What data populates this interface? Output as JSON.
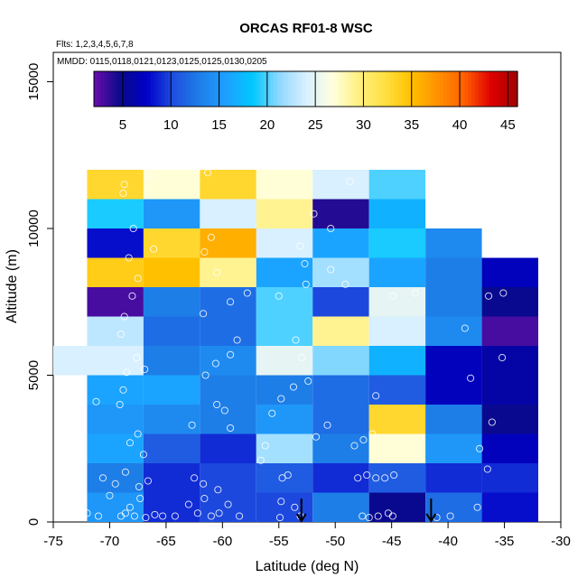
{
  "chart_data": {
    "type": "heatmap",
    "title": "ORCAS RF01-8 WSC",
    "annotations": {
      "flights": "Flts: 1,2,3,4,5,6,7,8",
      "dates": "MMDD: 0115,0118,0121,0123,0125,0125,0130,0205"
    },
    "xlabel": "Latitude (deg N)",
    "ylabel": "Altitude (m)",
    "xlim": [
      -75,
      -30
    ],
    "ylim": [
      0,
      16000
    ],
    "x_ticks": [
      -75,
      -70,
      -65,
      -60,
      -55,
      -50,
      -45,
      -40,
      -35,
      -30
    ],
    "y_ticks": [
      0,
      5000,
      10000,
      15000
    ],
    "x_tick_labels": [
      "-75",
      "-70",
      "-65",
      "-60",
      "-55",
      "-50",
      "-45",
      "-40",
      "-35",
      "-30"
    ],
    "y_tick_labels": [
      "0",
      "5000",
      "10000",
      "15000"
    ],
    "colorbar": {
      "range": [
        2,
        46
      ],
      "ticks": [
        5,
        10,
        15,
        20,
        25,
        30,
        35,
        40,
        45
      ],
      "tick_labels": [
        "5",
        "10",
        "15",
        "20",
        "25",
        "30",
        "35",
        "40",
        "45"
      ]
    },
    "bin_width_deg": 5,
    "bin_height_m": 1000,
    "columns": [
      {
        "lon_min": -75,
        "values": [
          null,
          null,
          null,
          null,
          null,
          24,
          null,
          null,
          null,
          null,
          null,
          null
        ]
      },
      {
        "lon_min": -72,
        "values": [
          15,
          13,
          16,
          15,
          16,
          24,
          23,
          3,
          34,
          8,
          19,
          33
        ]
      },
      {
        "lon_min": -67,
        "values": [
          9,
          9,
          11,
          14,
          16,
          13,
          12,
          13,
          35,
          33,
          15,
          27
        ]
      },
      {
        "lon_min": -62,
        "values": [
          10,
          10,
          9,
          13,
          13,
          14,
          12,
          12,
          29,
          36,
          24,
          33
        ]
      },
      {
        "lon_min": -57,
        "values": [
          10,
          11,
          22,
          15,
          13,
          25,
          20,
          20,
          16,
          24,
          29,
          27
        ]
      },
      {
        "lon_min": -52,
        "values": [
          13,
          9,
          13,
          12,
          12,
          21,
          29,
          10,
          22,
          16,
          4,
          24
        ]
      },
      {
        "lon_min": -47,
        "values": [
          5,
          11,
          27,
          33,
          11,
          17,
          24,
          25,
          16,
          19,
          17,
          20
        ]
      },
      {
        "lon_min": -42,
        "values": [
          12,
          9,
          15,
          13,
          7,
          7,
          14,
          13,
          13,
          14,
          null,
          null
        ]
      },
      {
        "lon_min": -37,
        "values": [
          8,
          9,
          7,
          5,
          6,
          6,
          3,
          5,
          7,
          null,
          null,
          null
        ]
      }
    ],
    "markers": [
      {
        "label": "down-arrow",
        "lat": -53,
        "alt": 800
      },
      {
        "label": "down-arrow",
        "lat": -41.5,
        "alt": 800
      }
    ],
    "point_cloud": [
      [
        -72.0,
        300
      ],
      [
        -71.0,
        200
      ],
      [
        -70.6,
        1500
      ],
      [
        -70.0,
        900
      ],
      [
        -69.5,
        1300
      ],
      [
        -69.0,
        200
      ],
      [
        -68.6,
        300
      ],
      [
        -68.2,
        500
      ],
      [
        -67.8,
        200
      ],
      [
        -67.3,
        800
      ],
      [
        -66.8,
        150
      ],
      [
        -66.0,
        250
      ],
      [
        -65.3,
        200
      ],
      [
        -68.6,
        1700
      ],
      [
        -67.4,
        1200
      ],
      [
        -66.6,
        1400
      ],
      [
        -69.1,
        4000
      ],
      [
        -68.8,
        4500
      ],
      [
        -68.2,
        2700
      ],
      [
        -67.5,
        3000
      ],
      [
        -67.0,
        2300
      ],
      [
        -71.2,
        4100
      ],
      [
        -68.5,
        5100
      ],
      [
        -67.6,
        5600
      ],
      [
        -66.9,
        5200
      ],
      [
        -69.0,
        6400
      ],
      [
        -68.7,
        7000
      ],
      [
        -68.0,
        7700
      ],
      [
        -67.5,
        8300
      ],
      [
        -68.3,
        9000
      ],
      [
        -66.1,
        9300
      ],
      [
        -67.9,
        10000
      ],
      [
        -68.8,
        11200
      ],
      [
        -66.5,
        11800
      ],
      [
        -68.7,
        11500
      ],
      [
        -64.2,
        200
      ],
      [
        -63.0,
        600
      ],
      [
        -62.2,
        300
      ],
      [
        -61.6,
        800
      ],
      [
        -61.0,
        200
      ],
      [
        -60.3,
        300
      ],
      [
        -59.5,
        600
      ],
      [
        -58.5,
        200
      ],
      [
        -62.5,
        1500
      ],
      [
        -61.7,
        1300
      ],
      [
        -60.4,
        1100
      ],
      [
        -62.7,
        3300
      ],
      [
        -60.5,
        4000
      ],
      [
        -59.8,
        3800
      ],
      [
        -59.3,
        3200
      ],
      [
        -61.5,
        5000
      ],
      [
        -60.6,
        5400
      ],
      [
        -59.3,
        5700
      ],
      [
        -58.7,
        6200
      ],
      [
        -61.7,
        7100
      ],
      [
        -59.3,
        7500
      ],
      [
        -57.8,
        7800
      ],
      [
        -60.5,
        8500
      ],
      [
        -61.0,
        9700
      ],
      [
        -61.6,
        9200
      ],
      [
        -62.3,
        12000
      ],
      [
        -61.3,
        11900
      ],
      [
        -56.6,
        2100
      ],
      [
        -56.2,
        2600
      ],
      [
        -54.7,
        1500
      ],
      [
        -54.2,
        1600
      ],
      [
        -54.8,
        700
      ],
      [
        -53.6,
        500
      ],
      [
        -53.1,
        200
      ],
      [
        -54.9,
        150
      ],
      [
        -55.6,
        3700
      ],
      [
        -54.8,
        4200
      ],
      [
        -53.7,
        4600
      ],
      [
        -52.4,
        4800
      ],
      [
        -53.0,
        5600
      ],
      [
        -53.5,
        6200
      ],
      [
        -55.0,
        7700
      ],
      [
        -52.6,
        8100
      ],
      [
        -52.7,
        8800
      ],
      [
        -53.1,
        9400
      ],
      [
        -51.9,
        10500
      ],
      [
        -50.4,
        10000
      ],
      [
        -48.7,
        11600
      ],
      [
        -47.6,
        200
      ],
      [
        -47.0,
        150
      ],
      [
        -46.2,
        200
      ],
      [
        -45.3,
        300
      ],
      [
        -44.9,
        200
      ],
      [
        -48.0,
        1500
      ],
      [
        -47.2,
        1600
      ],
      [
        -46.4,
        1500
      ],
      [
        -45.6,
        1500
      ],
      [
        -44.8,
        1600
      ],
      [
        -48.3,
        2600
      ],
      [
        -47.5,
        2800
      ],
      [
        -46.7,
        3000
      ],
      [
        -46.4,
        4300
      ],
      [
        -44.9,
        7700
      ],
      [
        -42.9,
        7800
      ],
      [
        -41.0,
        150
      ],
      [
        -39.8,
        200
      ],
      [
        -37.4,
        500
      ],
      [
        -36.5,
        1800
      ],
      [
        -37.2,
        2500
      ],
      [
        -36.1,
        3400
      ],
      [
        -38.0,
        4900
      ],
      [
        -38.5,
        6600
      ],
      [
        -36.4,
        7700
      ],
      [
        -35.2,
        5600
      ],
      [
        -35.1,
        7800
      ],
      [
        -50.4,
        8600
      ],
      [
        -49.1,
        8100
      ],
      [
        -50.7,
        3300
      ],
      [
        -51.7,
        2900
      ]
    ],
    "palette": [
      "#6a0dad",
      "#0a0a8a",
      "#0000c8",
      "#1f4fe0",
      "#1e7ee8",
      "#1ea0ff",
      "#00c8ff",
      "#8fd8ff",
      "#d8f0ff",
      "#ffffe0",
      "#fff080",
      "#ffe040",
      "#ffc000",
      "#ff9000",
      "#ff6000",
      "#e00000",
      "#a00000"
    ]
  }
}
